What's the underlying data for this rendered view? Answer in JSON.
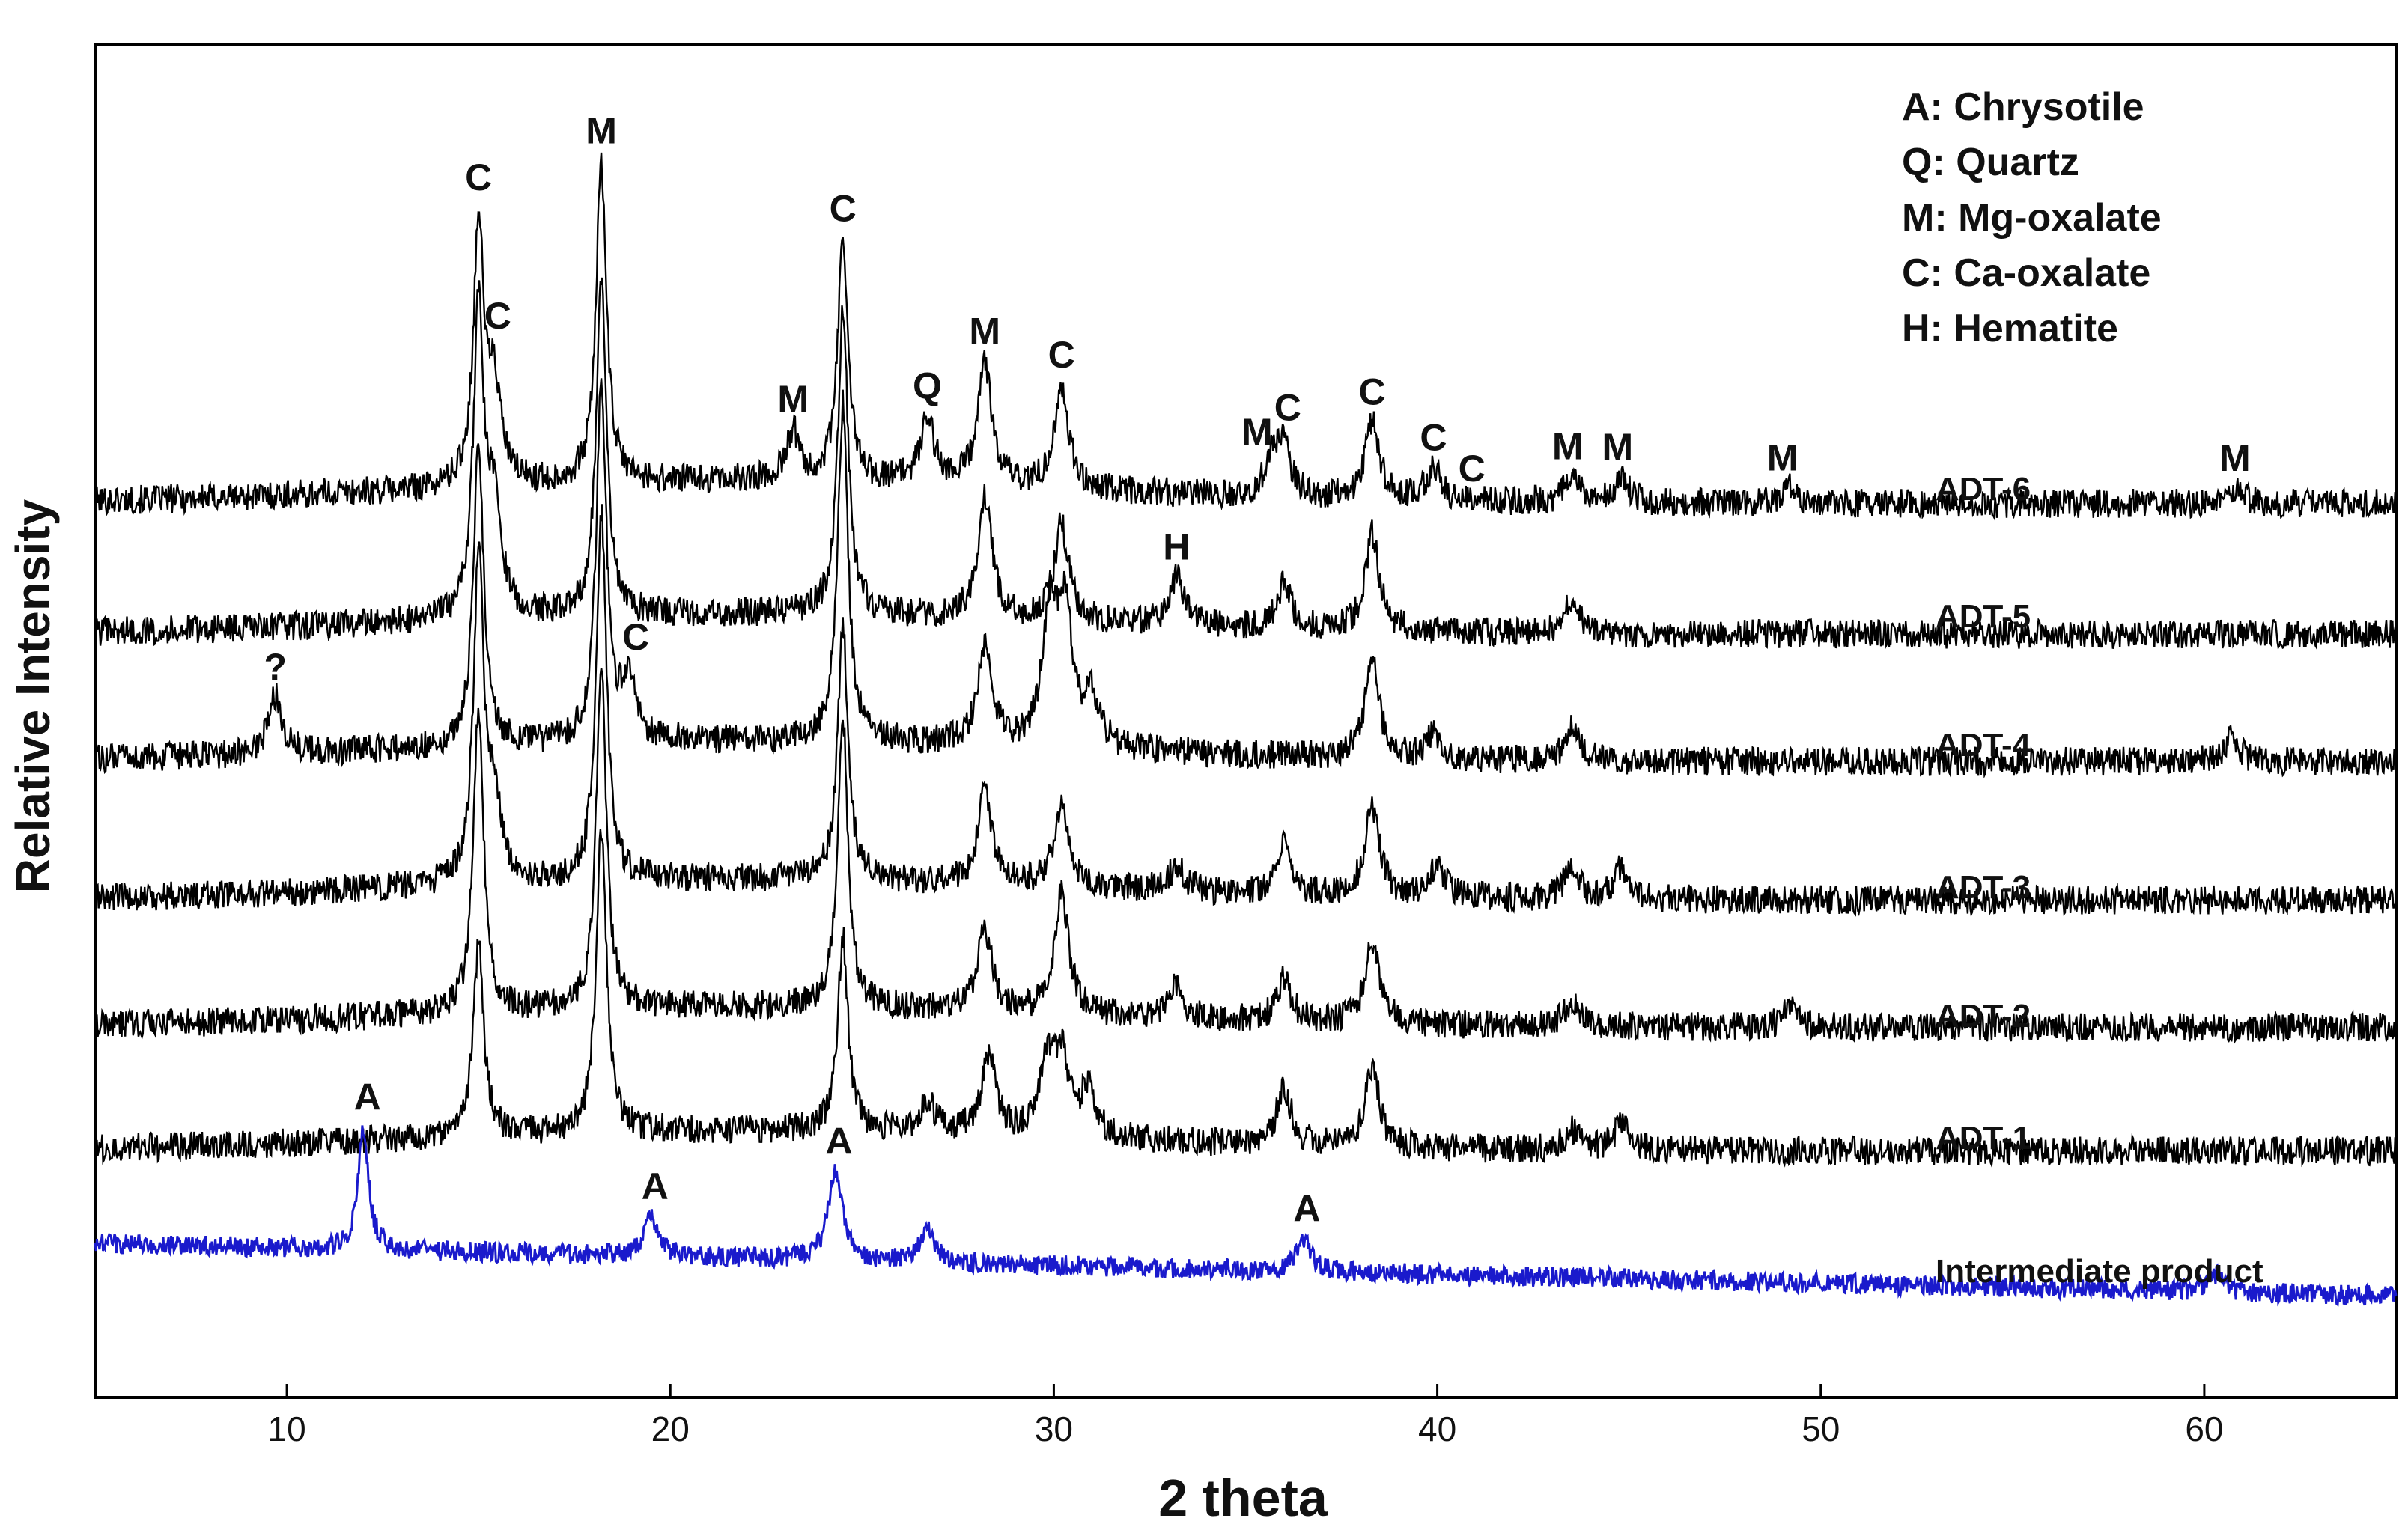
{
  "chart_data": {
    "type": "line",
    "title": "",
    "xlabel": "2 theta",
    "ylabel": "Relative Intensity",
    "xlim": [
      5,
      65
    ],
    "x_ticks": [
      10,
      20,
      30,
      40,
      50,
      60
    ],
    "grid": false,
    "legend": {
      "placement": "top-right",
      "entries": [
        "A: Chrysotile",
        "Q: Quartz",
        "M: Mg-oxalate",
        "C: Ca-oxalate",
        "H: Hematite"
      ]
    },
    "colors": {
      "oxalate": "#000000",
      "intermediate": "#1a1acc"
    },
    "series": [
      {
        "name": "ADT-6",
        "color": "#000000",
        "baseline": 0.2,
        "peaks": [
          {
            "x": 15.0,
            "h": 0.8
          },
          {
            "x": 15.4,
            "h": 0.3
          },
          {
            "x": 18.2,
            "h": 1.0
          },
          {
            "x": 23.2,
            "h": 0.15
          },
          {
            "x": 24.5,
            "h": 0.75
          },
          {
            "x": 26.7,
            "h": 0.2
          },
          {
            "x": 28.2,
            "h": 0.38
          },
          {
            "x": 30.2,
            "h": 0.32
          },
          {
            "x": 35.7,
            "h": 0.12
          },
          {
            "x": 36.0,
            "h": 0.14
          },
          {
            "x": 38.3,
            "h": 0.24
          },
          {
            "x": 39.9,
            "h": 0.1
          },
          {
            "x": 43.5,
            "h": 0.08
          },
          {
            "x": 44.8,
            "h": 0.08
          },
          {
            "x": 49.2,
            "h": 0.05
          },
          {
            "x": 60.8,
            "h": 0.05
          }
        ],
        "annotations": [
          {
            "text": "C",
            "x": 15.0
          },
          {
            "text": "C",
            "x": 15.5
          },
          {
            "text": "M",
            "x": 18.2
          },
          {
            "text": "M",
            "x": 23.2
          },
          {
            "text": "C",
            "x": 24.5
          },
          {
            "text": "Q",
            "x": 26.7
          },
          {
            "text": "M",
            "x": 28.2
          },
          {
            "text": "C",
            "x": 30.2
          },
          {
            "text": "M",
            "x": 35.3
          },
          {
            "text": "C",
            "x": 36.1
          },
          {
            "text": "C",
            "x": 38.3
          },
          {
            "text": "C",
            "x": 39.9
          },
          {
            "text": "C",
            "x": 40.9
          },
          {
            "text": "M",
            "x": 43.4
          },
          {
            "text": "M",
            "x": 44.7
          },
          {
            "text": "M",
            "x": 49.0
          },
          {
            "text": "M",
            "x": 60.8
          }
        ]
      },
      {
        "name": "ADT-5",
        "color": "#000000",
        "baseline": 0.18,
        "peaks": [
          {
            "x": 15.0,
            "h": 0.95
          },
          {
            "x": 15.4,
            "h": 0.35
          },
          {
            "x": 18.2,
            "h": 1.05
          },
          {
            "x": 24.5,
            "h": 0.95
          },
          {
            "x": 28.2,
            "h": 0.38
          },
          {
            "x": 30.2,
            "h": 0.3
          },
          {
            "x": 33.2,
            "h": 0.15
          },
          {
            "x": 36.0,
            "h": 0.14
          },
          {
            "x": 38.3,
            "h": 0.3
          },
          {
            "x": 43.5,
            "h": 0.1
          }
        ],
        "annotations": [
          {
            "text": "H",
            "x": 33.2
          }
        ]
      },
      {
        "name": "ADT-4",
        "color": "#000000",
        "baseline": 0.18,
        "peaks": [
          {
            "x": 9.7,
            "h": 0.18
          },
          {
            "x": 15.0,
            "h": 0.95
          },
          {
            "x": 18.2,
            "h": 1.1
          },
          {
            "x": 18.9,
            "h": 0.18
          },
          {
            "x": 24.5,
            "h": 1.05
          },
          {
            "x": 28.2,
            "h": 0.3
          },
          {
            "x": 29.9,
            "h": 0.42
          },
          {
            "x": 30.3,
            "h": 0.4
          },
          {
            "x": 31.0,
            "h": 0.15
          },
          {
            "x": 38.3,
            "h": 0.3
          },
          {
            "x": 39.9,
            "h": 0.08
          },
          {
            "x": 43.5,
            "h": 0.1
          },
          {
            "x": 60.7,
            "h": 0.08
          }
        ],
        "annotations": [
          {
            "text": "?",
            "x": 9.7
          },
          {
            "text": "C",
            "x": 19.1
          }
        ]
      },
      {
        "name": "ADT-3",
        "color": "#000000",
        "baseline": 0.18,
        "peaks": [
          {
            "x": 15.0,
            "h": 1.0
          },
          {
            "x": 15.4,
            "h": 0.25
          },
          {
            "x": 18.2,
            "h": 1.15
          },
          {
            "x": 24.5,
            "h": 0.8
          },
          {
            "x": 28.2,
            "h": 0.28
          },
          {
            "x": 30.2,
            "h": 0.26
          },
          {
            "x": 33.2,
            "h": 0.08
          },
          {
            "x": 36.0,
            "h": 0.15
          },
          {
            "x": 38.3,
            "h": 0.28
          },
          {
            "x": 40.0,
            "h": 0.1
          },
          {
            "x": 43.5,
            "h": 0.1
          },
          {
            "x": 44.8,
            "h": 0.1
          }
        ],
        "annotations": []
      },
      {
        "name": "ADT-2",
        "color": "#000000",
        "baseline": 0.18,
        "peaks": [
          {
            "x": 15.0,
            "h": 0.95
          },
          {
            "x": 18.2,
            "h": 1.05
          },
          {
            "x": 24.5,
            "h": 0.9
          },
          {
            "x": 28.2,
            "h": 0.25
          },
          {
            "x": 30.2,
            "h": 0.38
          },
          {
            "x": 33.2,
            "h": 0.1
          },
          {
            "x": 36.0,
            "h": 0.14
          },
          {
            "x": 38.3,
            "h": 0.26
          },
          {
            "x": 43.5,
            "h": 0.08
          },
          {
            "x": 49.2,
            "h": 0.06
          }
        ],
        "annotations": []
      },
      {
        "name": "ADT-1",
        "color": "#000000",
        "baseline": 0.18,
        "peaks": [
          {
            "x": 15.0,
            "h": 0.6
          },
          {
            "x": 18.2,
            "h": 0.95
          },
          {
            "x": 24.5,
            "h": 0.6
          },
          {
            "x": 26.7,
            "h": 0.1
          },
          {
            "x": 28.3,
            "h": 0.25
          },
          {
            "x": 29.8,
            "h": 0.22
          },
          {
            "x": 30.2,
            "h": 0.25
          },
          {
            "x": 30.9,
            "h": 0.15
          },
          {
            "x": 36.0,
            "h": 0.18
          },
          {
            "x": 38.3,
            "h": 0.25
          },
          {
            "x": 43.5,
            "h": 0.06
          },
          {
            "x": 44.8,
            "h": 0.08
          }
        ],
        "annotations": []
      },
      {
        "name": "Intermediate product",
        "color": "#1a1acc",
        "baseline": 0.3,
        "peaks": [
          {
            "x": 12.0,
            "h": 0.55
          },
          {
            "x": 19.5,
            "h": 0.18
          },
          {
            "x": 24.3,
            "h": 0.4
          },
          {
            "x": 26.7,
            "h": 0.15
          },
          {
            "x": 36.5,
            "h": 0.15
          },
          {
            "x": 60.3,
            "h": 0.08
          }
        ],
        "annotations": [
          {
            "text": "A",
            "x": 12.1
          },
          {
            "text": "A",
            "x": 19.6
          },
          {
            "text": "A",
            "x": 24.4
          },
          {
            "text": "A",
            "x": 36.6
          }
        ]
      }
    ]
  }
}
